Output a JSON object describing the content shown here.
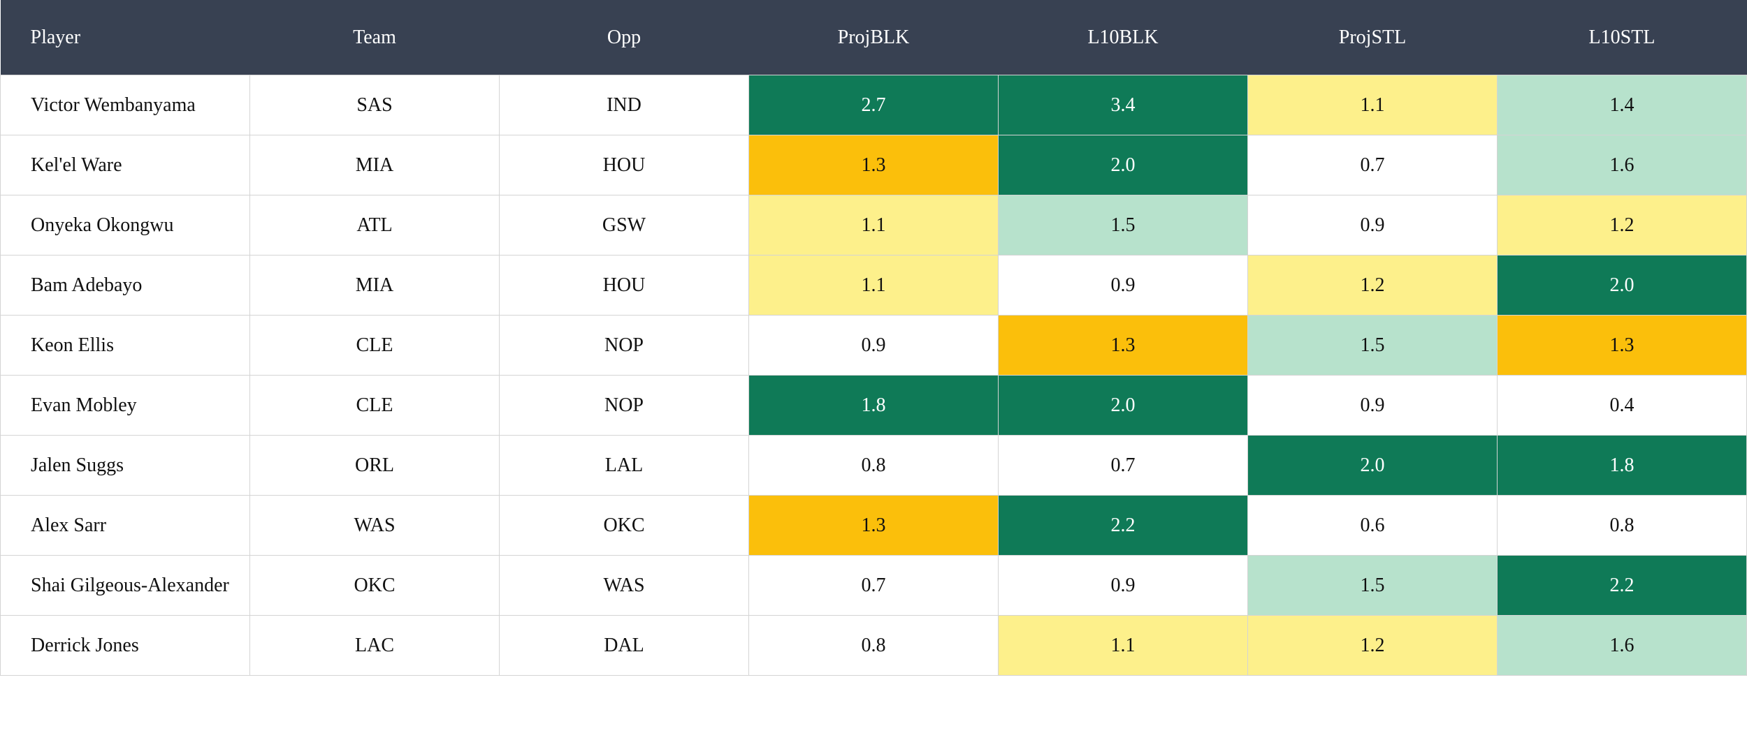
{
  "table": {
    "header": [
      "Player",
      "Team",
      "Opp",
      "ProjBLK",
      "L10BLK",
      "ProjSTL",
      "L10STL"
    ],
    "rows": [
      [
        "Victor Wembanyama",
        "SAS",
        "IND",
        "2.7",
        "3.4",
        "1.1",
        "1.4"
      ],
      [
        "Kel'el Ware",
        "MIA",
        "HOU",
        "1.3",
        "2.0",
        "0.7",
        "1.6"
      ],
      [
        "Onyeka Okongwu",
        "ATL",
        "GSW",
        "1.1",
        "1.5",
        "0.9",
        "1.2"
      ],
      [
        "Bam Adebayo",
        "MIA",
        "HOU",
        "1.1",
        "0.9",
        "1.2",
        "2.0"
      ],
      [
        "Keon Ellis",
        "CLE",
        "NOP",
        "0.9",
        "1.3",
        "1.5",
        "1.3"
      ],
      [
        "Evan Mobley",
        "CLE",
        "NOP",
        "1.8",
        "2.0",
        "0.9",
        "0.4"
      ],
      [
        "Jalen Suggs",
        "ORL",
        "LAL",
        "0.8",
        "0.7",
        "2.0",
        "1.8"
      ],
      [
        "Alex Sarr",
        "WAS",
        "OKC",
        "1.3",
        "2.2",
        "0.6",
        "0.8"
      ],
      [
        "Shai Gilgeous-Alexander",
        "OKC",
        "WAS",
        "0.7",
        "0.9",
        "1.5",
        "2.2"
      ],
      [
        "Derrick Jones",
        "LAC",
        "DAL",
        "0.8",
        "1.1",
        "1.2",
        "1.6"
      ]
    ],
    "cell_colors": [
      [
        "#0f7a57",
        "#0f7a57",
        "#fdf08b",
        "#b7e2cc"
      ],
      [
        "#fbbf0b",
        "#0f7a57",
        "#ffffff",
        "#b7e2cc"
      ],
      [
        "#fdf08b",
        "#b7e2cc",
        "#ffffff",
        "#fdf08b"
      ],
      [
        "#fdf08b",
        "#ffffff",
        "#fdf08b",
        "#0f7a57"
      ],
      [
        "#ffffff",
        "#fbbf0b",
        "#b7e2cc",
        "#fbbf0b"
      ],
      [
        "#0f7a57",
        "#0f7a57",
        "#ffffff",
        "#ffffff"
      ],
      [
        "#ffffff",
        "#ffffff",
        "#0f7a57",
        "#0f7a57"
      ],
      [
        "#fbbf0b",
        "#0f7a57",
        "#ffffff",
        "#ffffff"
      ],
      [
        "#ffffff",
        "#ffffff",
        "#b7e2cc",
        "#0f7a57"
      ],
      [
        "#ffffff",
        "#fdf08b",
        "#fdf08b",
        "#b7e2cc"
      ]
    ]
  }
}
